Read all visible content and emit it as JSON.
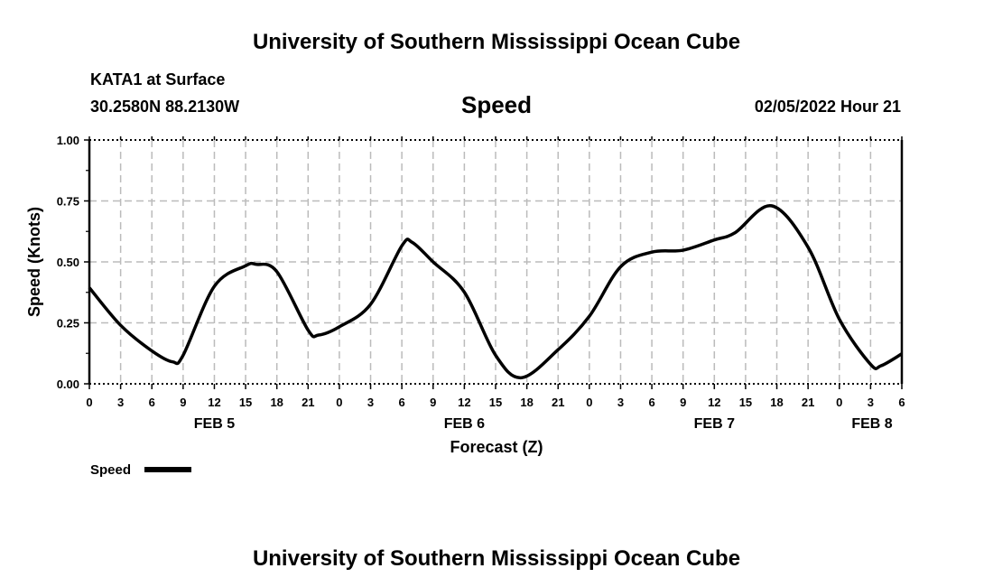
{
  "header": {
    "title": "University of Southern Mississippi Ocean Cube",
    "station": "KATA1 at Surface",
    "coords": "30.2580N  88.2130W",
    "variable": "Speed",
    "datetime": "02/05/2022 Hour 21"
  },
  "footer": {
    "title": "University of Southern Mississippi Ocean Cube"
  },
  "legend": {
    "label": "Speed",
    "color": "#000000"
  },
  "chart_data": {
    "type": "line",
    "title": "Speed",
    "xlabel": "Forecast (Z)",
    "ylabel": "Speed (Knots)",
    "x_unit": "hours since FEB 5 00Z",
    "xlim": [
      0,
      78
    ],
    "ylim": [
      0,
      1
    ],
    "grid": true,
    "legend_position": "bottom-left",
    "yticks": [
      "0.00",
      "0.25",
      "0.50",
      "0.75",
      "1.00"
    ],
    "xtick_labels": [
      "0",
      "3",
      "6",
      "9",
      "12",
      "15",
      "18",
      "21",
      "0",
      "3",
      "6",
      "9",
      "12",
      "15",
      "18",
      "21",
      "0",
      "3",
      "6",
      "9",
      "12",
      "15",
      "18",
      "21",
      "0",
      "3",
      "6"
    ],
    "date_labels": [
      {
        "label": "FEB 5",
        "hour": 12
      },
      {
        "label": "FEB 6",
        "hour": 36
      },
      {
        "label": "FEB 7",
        "hour": 60
      },
      {
        "label": "FEB 8",
        "hour": 78
      }
    ],
    "series": [
      {
        "name": "Speed",
        "x": [
          0,
          3,
          6,
          8,
          9,
          12,
          15,
          16,
          18,
          21,
          22,
          24,
          27,
          30,
          31,
          33,
          36,
          39,
          41.5,
          45,
          48,
          51,
          54,
          57,
          60,
          62,
          65.5,
          69,
          72,
          75,
          76,
          78
        ],
        "values": [
          0.394,
          0.24,
          0.135,
          0.09,
          0.117,
          0.4,
          0.484,
          0.49,
          0.46,
          0.22,
          0.2,
          0.234,
          0.326,
          0.566,
          0.58,
          0.5,
          0.376,
          0.117,
          0.025,
          0.14,
          0.277,
          0.48,
          0.54,
          0.548,
          0.59,
          0.62,
          0.73,
          0.56,
          0.265,
          0.08,
          0.074,
          0.123
        ]
      }
    ]
  }
}
